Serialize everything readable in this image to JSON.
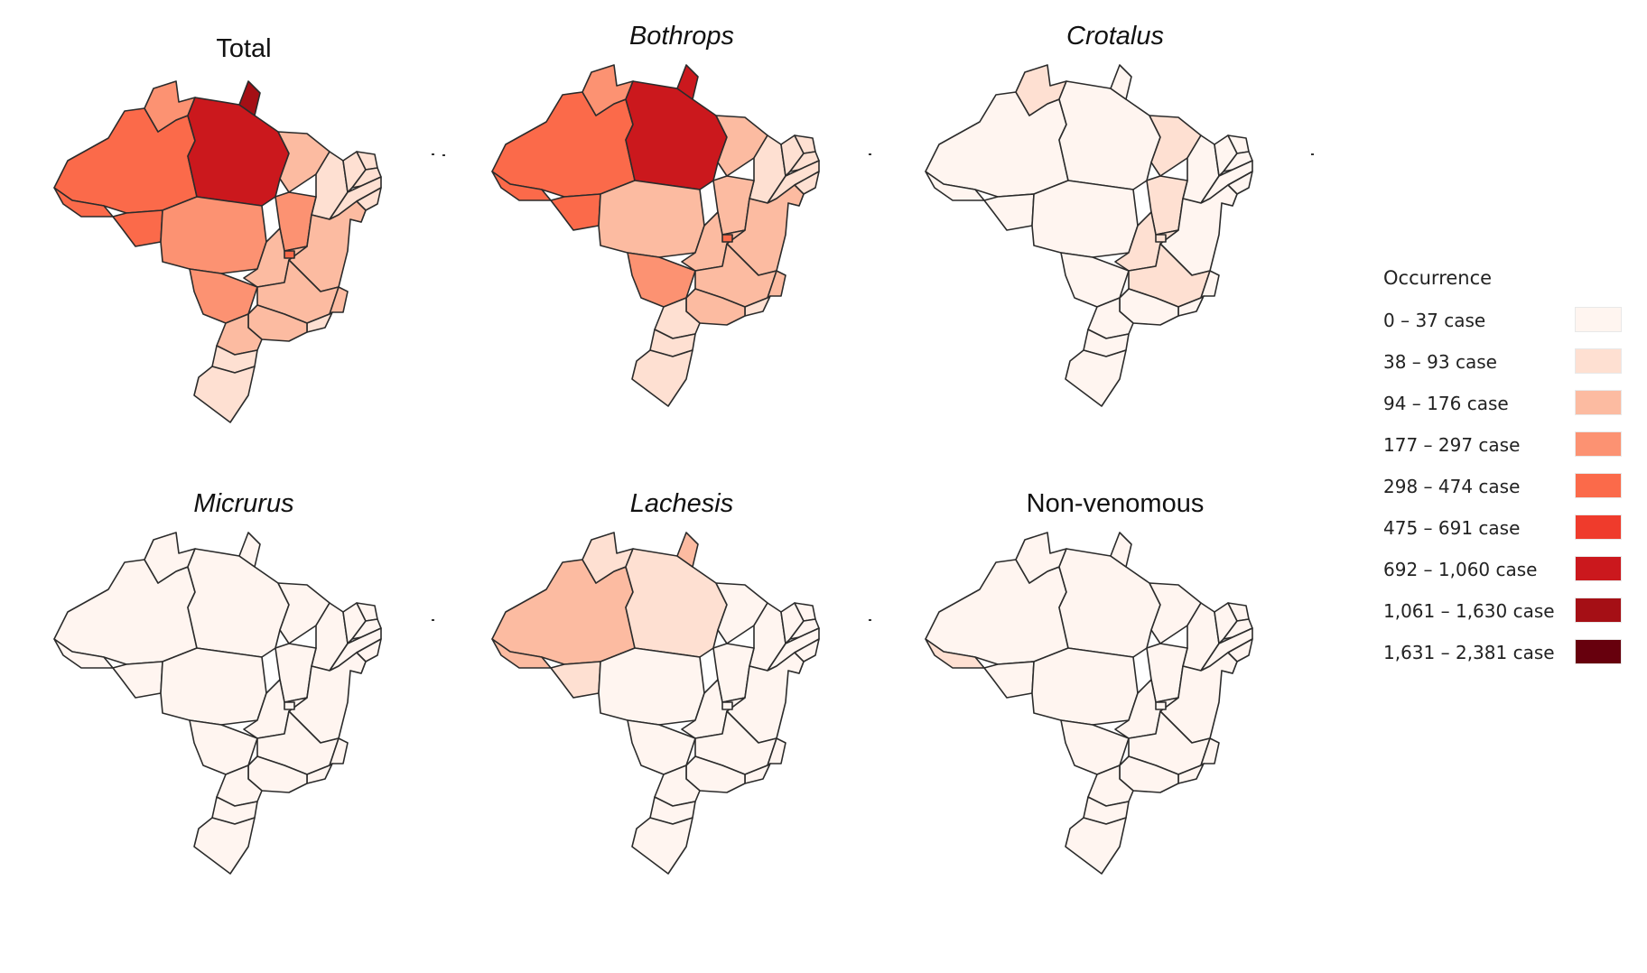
{
  "legend": {
    "title": "Occurrence",
    "classes": [
      {
        "label": "0 – 37 case",
        "color": "#fff5f0"
      },
      {
        "label": "38 – 93 case",
        "color": "#fee0d2"
      },
      {
        "label": "94 – 176 case",
        "color": "#fcbba1"
      },
      {
        "label": "177 – 297 case",
        "color": "#fc9272"
      },
      {
        "label": "298 – 474 case",
        "color": "#fb6a4a"
      },
      {
        "label": "475 – 691 case",
        "color": "#ef3b2c"
      },
      {
        "label": "692 – 1,060 case",
        "color": "#cb181d"
      },
      {
        "label": "1,061 – 1,630 case",
        "color": "#a50f15"
      },
      {
        "label": "1,631 – 2,381 case",
        "color": "#67000d"
      }
    ]
  },
  "maps": [
    {
      "title": "Total",
      "italic": false,
      "regions": {
        "amazonas": 4,
        "para": 6,
        "amapa": 7,
        "roraima": 3,
        "acre": 4,
        "rondonia": 4,
        "mato_grosso": 3,
        "tocantins": 3,
        "maranhao": 2,
        "piaui": 1,
        "ceara": 1,
        "rio_grande_do_norte": 1,
        "paraiba": 1,
        "pernambuco": 1,
        "alagoas": 1,
        "sergipe": 1,
        "bahia": 2,
        "goias": 2,
        "distrito_federal": 4,
        "mato_grosso_do_sul": 3,
        "minas_gerais": 2,
        "espirito_santo": 2,
        "rio_de_janeiro": 1,
        "sao_paulo": 2,
        "parana": 2,
        "santa_catarina": 1,
        "rio_grande_do_sul": 1
      }
    },
    {
      "title": "Bothrops",
      "italic": true,
      "regions": {
        "amazonas": 4,
        "para": 6,
        "amapa": 6,
        "roraima": 3,
        "acre": 4,
        "rondonia": 4,
        "mato_grosso": 2,
        "tocantins": 2,
        "maranhao": 2,
        "piaui": 1,
        "ceara": 1,
        "rio_grande_do_norte": 1,
        "paraiba": 1,
        "pernambuco": 1,
        "alagoas": 1,
        "sergipe": 1,
        "bahia": 2,
        "goias": 2,
        "distrito_federal": 4,
        "mato_grosso_do_sul": 3,
        "minas_gerais": 2,
        "espirito_santo": 2,
        "rio_de_janeiro": 1,
        "sao_paulo": 2,
        "parana": 1,
        "santa_catarina": 1,
        "rio_grande_do_sul": 1
      }
    },
    {
      "title": "Crotalus",
      "italic": true,
      "regions": {
        "amazonas": 0,
        "para": 0,
        "amapa": 0,
        "roraima": 1,
        "acre": 0,
        "rondonia": 0,
        "mato_grosso": 0,
        "tocantins": 1,
        "maranhao": 1,
        "piaui": 0,
        "ceara": 0,
        "rio_grande_do_norte": 0,
        "paraiba": 0,
        "pernambuco": 0,
        "alagoas": 0,
        "sergipe": 0,
        "bahia": 0,
        "goias": 1,
        "distrito_federal": 1,
        "mato_grosso_do_sul": 0,
        "minas_gerais": 1,
        "espirito_santo": 0,
        "rio_de_janeiro": 0,
        "sao_paulo": 0,
        "parana": 0,
        "santa_catarina": 0,
        "rio_grande_do_sul": 0
      }
    },
    {
      "title": "Micrurus",
      "italic": true,
      "regions": {
        "amazonas": 0,
        "para": 0,
        "amapa": 0,
        "roraima": 0,
        "acre": 0,
        "rondonia": 0,
        "mato_grosso": 0,
        "tocantins": 0,
        "maranhao": 0,
        "piaui": 0,
        "ceara": 0,
        "rio_grande_do_norte": 0,
        "paraiba": 0,
        "pernambuco": 0,
        "alagoas": 0,
        "sergipe": 0,
        "bahia": 0,
        "goias": 0,
        "distrito_federal": 0,
        "mato_grosso_do_sul": 0,
        "minas_gerais": 0,
        "espirito_santo": 0,
        "rio_de_janeiro": 0,
        "sao_paulo": 0,
        "parana": 0,
        "santa_catarina": 0,
        "rio_grande_do_sul": 0
      }
    },
    {
      "title": "Lachesis",
      "italic": true,
      "regions": {
        "amazonas": 2,
        "para": 1,
        "amapa": 2,
        "roraima": 1,
        "acre": 2,
        "rondonia": 1,
        "mato_grosso": 0,
        "tocantins": 0,
        "maranhao": 0,
        "piaui": 0,
        "ceara": 0,
        "rio_grande_do_norte": 0,
        "paraiba": 0,
        "pernambuco": 0,
        "alagoas": 0,
        "sergipe": 0,
        "bahia": 0,
        "goias": 0,
        "distrito_federal": 0,
        "mato_grosso_do_sul": 0,
        "minas_gerais": 0,
        "espirito_santo": 0,
        "rio_de_janeiro": 0,
        "sao_paulo": 0,
        "parana": 0,
        "santa_catarina": 0,
        "rio_grande_do_sul": 0
      }
    },
    {
      "title": "Non-venomous",
      "italic": false,
      "regions": {
        "amazonas": 0,
        "para": 0,
        "amapa": 0,
        "roraima": 0,
        "acre": 1,
        "rondonia": 0,
        "mato_grosso": 0,
        "tocantins": 0,
        "maranhao": 0,
        "piaui": 0,
        "ceara": 0,
        "rio_grande_do_norte": 0,
        "paraiba": 0,
        "pernambuco": 0,
        "alagoas": 0,
        "sergipe": 0,
        "bahia": 0,
        "goias": 0,
        "distrito_federal": 0,
        "mato_grosso_do_sul": 0,
        "minas_gerais": 0,
        "espirito_santo": 0,
        "rio_de_janeiro": 0,
        "sao_paulo": 0,
        "parana": 0,
        "santa_catarina": 0,
        "rio_grande_do_sul": 0
      }
    }
  ]
}
